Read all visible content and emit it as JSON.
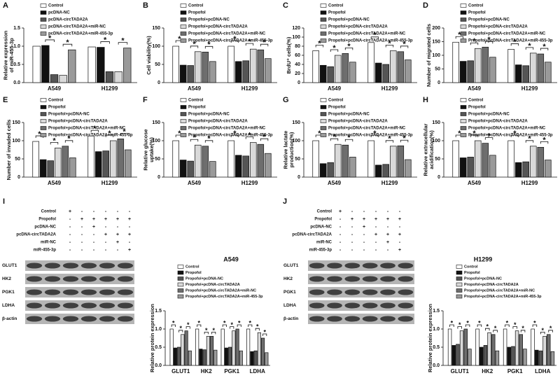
{
  "chart_data": [
    {
      "type": "bar",
      "panel_label": "A",
      "ylabel": [
        "Relative expression",
        "of miR-455-3p"
      ],
      "categories": [
        "A549",
        "H1299"
      ],
      "significance": "*",
      "ylim": [
        0,
        1.5
      ],
      "yticks": [
        {
          "value": 0,
          "label": "0.0"
        },
        {
          "value": 0.5,
          "label": "0.5"
        },
        {
          "value": 1,
          "label": "1.0"
        },
        {
          "value": 1.5,
          "label": "1.5"
        }
      ],
      "series": [
        {
          "name": "Control",
          "color": "#ffffff",
          "values": [
            1.0,
            0.98
          ]
        },
        {
          "name": "pcDNA-NC",
          "color": "#111111",
          "values": [
            1.02,
            0.97
          ]
        },
        {
          "name": "pcDNA-circTADA2A",
          "color": "#555555",
          "values": [
            0.22,
            0.3
          ]
        },
        {
          "name": "pcDNA-circTADA2A+miR-NC",
          "color": "#d9d9d9",
          "values": [
            0.2,
            0.3
          ]
        },
        {
          "name": "pcDNA-circTADA2A+miR-455-3p",
          "color": "#9a9a9a",
          "values": [
            0.9,
            0.95
          ]
        }
      ]
    },
    {
      "type": "bar",
      "panel_label": "B",
      "ylabel": [
        "Cell viability(%)"
      ],
      "categories": [
        "A549",
        "H1299"
      ],
      "significance": "*",
      "ylim": [
        0,
        150
      ],
      "yticks": [
        0,
        50,
        100,
        150
      ],
      "series": [
        {
          "name": "Control",
          "color": "#ffffff",
          "values": [
            100,
            100
          ]
        },
        {
          "name": "Propofol",
          "color": "#111111",
          "values": [
            48,
            58
          ]
        },
        {
          "name": "Propofol+pcDNA-NC",
          "color": "#555555",
          "values": [
            47,
            60
          ]
        },
        {
          "name": "Propofol+pcDNA-circTADA2A",
          "color": "#d9d9d9",
          "values": [
            85,
            92
          ]
        },
        {
          "name": "Propofol+pcDNA-circTADA2A+miR-NC",
          "color": "#6e6e6e",
          "values": [
            84,
            90
          ]
        },
        {
          "name": "Propofol+pcDNA-circTADA2A+miR-455-3p",
          "color": "#9a9a9a",
          "values": [
            58,
            66
          ]
        }
      ]
    },
    {
      "type": "bar",
      "panel_label": "C",
      "ylabel": [
        "BrdU⁺ cells(%)"
      ],
      "categories": [
        "A549",
        "H1299"
      ],
      "significance": "*",
      "ylim": [
        0,
        120
      ],
      "yticks": [
        0,
        20,
        40,
        60,
        80,
        100,
        120
      ],
      "series": [
        {
          "name": "Control",
          "color": "#ffffff",
          "values": [
            70,
            88
          ]
        },
        {
          "name": "Propofol",
          "color": "#111111",
          "values": [
            38,
            43
          ]
        },
        {
          "name": "Propofol+pcDNA-NC",
          "color": "#555555",
          "values": [
            35,
            40
          ]
        },
        {
          "name": "Propofol+pcDNA-circTADA2A",
          "color": "#d9d9d9",
          "values": [
            60,
            70
          ]
        },
        {
          "name": "Propofol+pcDNA-circTADA2A+miR-NC",
          "color": "#6e6e6e",
          "values": [
            64,
            68
          ]
        },
        {
          "name": "Propofol+pcDNA-circTADA2A+miR-455-3p",
          "color": "#9a9a9a",
          "values": [
            45,
            50
          ]
        }
      ]
    },
    {
      "type": "bar",
      "panel_label": "D",
      "ylabel": [
        "Number of migrated cells"
      ],
      "categories": [
        "A549",
        "H1299"
      ],
      "significance": "*",
      "ylim": [
        0,
        200
      ],
      "yticks": [
        0,
        50,
        100,
        150,
        200
      ],
      "series": [
        {
          "name": "Control",
          "color": "#ffffff",
          "values": [
            148,
            122
          ]
        },
        {
          "name": "Propofol",
          "color": "#111111",
          "values": [
            78,
            65
          ]
        },
        {
          "name": "Propofol+pcDNA-NC",
          "color": "#555555",
          "values": [
            80,
            62
          ]
        },
        {
          "name": "Propofol+pcDNA-circTADA2A",
          "color": "#d9d9d9",
          "values": [
            125,
            108
          ]
        },
        {
          "name": "Propofol+pcDNA-circTADA2A+miR-NC",
          "color": "#6e6e6e",
          "values": [
            130,
            105
          ]
        },
        {
          "name": "Propofol+pcDNA-circTADA2A+miR-455-3p",
          "color": "#9a9a9a",
          "values": [
            93,
            75
          ]
        }
      ]
    },
    {
      "type": "bar",
      "panel_label": "E",
      "ylabel": [
        "Number of invaded cells"
      ],
      "categories": [
        "A549",
        "H1299"
      ],
      "significance": "*",
      "ylim": [
        0,
        150
      ],
      "yticks": [
        0,
        50,
        100,
        150
      ],
      "series": [
        {
          "name": "Control",
          "color": "#ffffff",
          "values": [
            98,
            113
          ]
        },
        {
          "name": "Propofol",
          "color": "#111111",
          "values": [
            48,
            70
          ]
        },
        {
          "name": "Propofol+pcDNA-NC",
          "color": "#555555",
          "values": [
            45,
            72
          ]
        },
        {
          "name": "Propofol+pcDNA-circTADA2A",
          "color": "#d9d9d9",
          "values": [
            80,
            100
          ]
        },
        {
          "name": "Propofol+pcDNA-circTADA2A+miR-NC",
          "color": "#6e6e6e",
          "values": [
            85,
            105
          ]
        },
        {
          "name": "Propofol+pcDNA-circTADA2A+miR-455-3p",
          "color": "#9a9a9a",
          "values": [
            53,
            75
          ]
        }
      ]
    },
    {
      "type": "bar",
      "panel_label": "F",
      "ylabel": [
        "Relative glucose",
        "uptake(%)"
      ],
      "categories": [
        "A549",
        "H1299"
      ],
      "significance": "*",
      "ylim": [
        0,
        150
      ],
      "yticks": [
        0,
        50,
        100,
        150
      ],
      "series": [
        {
          "name": "Control",
          "color": "#ffffff",
          "values": [
            100,
            100
          ]
        },
        {
          "name": "Propofol",
          "color": "#111111",
          "values": [
            47,
            60
          ]
        },
        {
          "name": "Propofol+pcDNA-NC",
          "color": "#555555",
          "values": [
            44,
            58
          ]
        },
        {
          "name": "Propofol+pcDNA-circTADA2A",
          "color": "#d9d9d9",
          "values": [
            88,
            95
          ]
        },
        {
          "name": "Propofol+pcDNA-circTADA2A+miR-NC",
          "color": "#6e6e6e",
          "values": [
            85,
            90
          ]
        },
        {
          "name": "Propofol+pcDNA-circTADA2A+miR-455-3p",
          "color": "#9a9a9a",
          "values": [
            43,
            65
          ]
        }
      ]
    },
    {
      "type": "bar",
      "panel_label": "G",
      "ylabel": [
        "Relative lactate",
        "production(%)"
      ],
      "categories": [
        "A549",
        "H1299"
      ],
      "significance": "*",
      "ylim": [
        0,
        150
      ],
      "yticks": [
        0,
        50,
        100,
        150
      ],
      "series": [
        {
          "name": "Control",
          "color": "#ffffff",
          "values": [
            100,
            100
          ]
        },
        {
          "name": "Propofol",
          "color": "#111111",
          "values": [
            37,
            33
          ]
        },
        {
          "name": "Propofol+pcDNA-NC",
          "color": "#555555",
          "values": [
            40,
            35
          ]
        },
        {
          "name": "Propofol+pcDNA-circTADA2A",
          "color": "#d9d9d9",
          "values": [
            90,
            85
          ]
        },
        {
          "name": "Propofol+pcDNA-circTADA2A+miR-NC",
          "color": "#6e6e6e",
          "values": [
            88,
            86
          ]
        },
        {
          "name": "Propofol+pcDNA-circTADA2A+miR-455-3p",
          "color": "#9a9a9a",
          "values": [
            55,
            48
          ]
        }
      ]
    },
    {
      "type": "bar",
      "panel_label": "H",
      "ylabel": [
        "Relative extracellular",
        "acidification(%)"
      ],
      "categories": [
        "A549",
        "H1299"
      ],
      "significance": "*",
      "ylim": [
        0,
        150
      ],
      "yticks": [
        0,
        50,
        100,
        150
      ],
      "series": [
        {
          "name": "Control",
          "color": "#ffffff",
          "values": [
            100,
            100
          ]
        },
        {
          "name": "Propofol",
          "color": "#111111",
          "values": [
            53,
            40
          ]
        },
        {
          "name": "Propofol+pcDNA-NC",
          "color": "#555555",
          "values": [
            55,
            42
          ]
        },
        {
          "name": "Propofol+pcDNA-circTADA2A",
          "color": "#d9d9d9",
          "values": [
            100,
            85
          ]
        },
        {
          "name": "Propofol+pcDNA-circTADA2A+miR-NC",
          "color": "#6e6e6e",
          "values": [
            93,
            82
          ]
        },
        {
          "name": "Propofol+pcDNA-circTADA2A+miR-455-3p",
          "color": "#9a9a9a",
          "values": [
            60,
            47
          ]
        }
      ]
    },
    {
      "type": "bar",
      "panel_label": "I",
      "title": "A549",
      "ylabel": [
        "Relative protein expression"
      ],
      "categories": [
        "GLUT1",
        "HK2",
        "PGK1",
        "LDHA"
      ],
      "significance": "*",
      "ylim": [
        0,
        1.5
      ],
      "yticks": [
        {
          "value": 0,
          "label": "0.0"
        },
        {
          "value": 0.5,
          "label": "0.5"
        },
        {
          "value": 1,
          "label": "1.0"
        },
        {
          "value": 1.5,
          "label": "1.5"
        }
      ],
      "series": [
        {
          "name": "Control",
          "color": "#ffffff",
          "values": [
            1.0,
            1.0,
            1.0,
            1.0
          ]
        },
        {
          "name": "Propofol",
          "color": "#111111",
          "values": [
            0.48,
            0.45,
            0.48,
            0.38
          ]
        },
        {
          "name": "Propofol+pcDNA-NC",
          "color": "#555555",
          "values": [
            0.5,
            0.43,
            0.5,
            0.4
          ]
        },
        {
          "name": "Propofol+pcDNA-circTADA2A",
          "color": "#d9d9d9",
          "values": [
            0.85,
            0.8,
            0.95,
            0.9
          ]
        },
        {
          "name": "Propofol+pcDNA-circTADA2A+miR-NC",
          "color": "#6e6e6e",
          "values": [
            0.95,
            0.8,
            1.0,
            0.75
          ]
        },
        {
          "name": "Propofol+pcDNA-circTADA2A+miR-455-3p",
          "color": "#9a9a9a",
          "values": [
            0.4,
            0.42,
            0.4,
            0.35
          ]
        }
      ],
      "treatments": [
        {
          "name": "Control",
          "signs": [
            "+",
            "-",
            "-",
            "-",
            "-",
            "-"
          ]
        },
        {
          "name": "Propofol",
          "signs": [
            "-",
            "+",
            "+",
            "+",
            "+",
            "+"
          ]
        },
        {
          "name": "pcDNA-NC",
          "signs": [
            "-",
            "-",
            "+",
            "-",
            "-",
            "-"
          ]
        },
        {
          "name": "pcDNA-circTADA2A",
          "signs": [
            "-",
            "-",
            "-",
            "+",
            "+",
            "+"
          ]
        },
        {
          "name": "miR-NC",
          "signs": [
            "-",
            "-",
            "-",
            "-",
            "+",
            "-"
          ]
        },
        {
          "name": "miR-455-3p",
          "signs": [
            "-",
            "-",
            "-",
            "-",
            "-",
            "+"
          ]
        }
      ],
      "blot_rows": [
        "GLUT1",
        "HK2",
        "PGK1",
        "LDHA",
        "β-actin"
      ]
    },
    {
      "type": "bar",
      "panel_label": "J",
      "title": "H1299",
      "ylabel": [
        "Relative protein expression"
      ],
      "categories": [
        "GLUT1",
        "HK2",
        "PGK1",
        "LDHA"
      ],
      "significance": "*",
      "ylim": [
        0,
        1.5
      ],
      "yticks": [
        {
          "value": 0,
          "label": "0.0"
        },
        {
          "value": 0.5,
          "label": "0.5"
        },
        {
          "value": 1,
          "label": "1.0"
        },
        {
          "value": 1.5,
          "label": "1.5"
        }
      ],
      "series": [
        {
          "name": "Control",
          "color": "#ffffff",
          "values": [
            1.0,
            1.0,
            1.0,
            1.0
          ]
        },
        {
          "name": "Propofol",
          "color": "#111111",
          "values": [
            0.55,
            0.5,
            0.5,
            0.42
          ]
        },
        {
          "name": "Propofol+pcDNA-NC",
          "color": "#555555",
          "values": [
            0.58,
            0.55,
            0.52,
            0.4
          ]
        },
        {
          "name": "Propofol+pcDNA-circTADA2A",
          "color": "#d9d9d9",
          "values": [
            0.95,
            0.9,
            0.95,
            0.8
          ]
        },
        {
          "name": "Propofol+pcDNA-circTADA2A+miR-NC",
          "color": "#6e6e6e",
          "values": [
            1.0,
            0.85,
            0.85,
            0.85
          ]
        },
        {
          "name": "Propofol+pcDNA-circTADA2A+miR-455-3p",
          "color": "#9a9a9a",
          "values": [
            0.45,
            0.4,
            0.45,
            0.38
          ]
        }
      ],
      "treatments": [
        {
          "name": "Control",
          "signs": [
            "+",
            "-",
            "-",
            "-",
            "-",
            "-"
          ]
        },
        {
          "name": "Propofol",
          "signs": [
            "-",
            "+",
            "+",
            "+",
            "+",
            "+"
          ]
        },
        {
          "name": "pcDNA-NC",
          "signs": [
            "-",
            "-",
            "+",
            "-",
            "-",
            "-"
          ]
        },
        {
          "name": "pcDNA-circTADA2A",
          "signs": [
            "-",
            "-",
            "-",
            "+",
            "+",
            "+"
          ]
        },
        {
          "name": "miR-NC",
          "signs": [
            "-",
            "-",
            "-",
            "-",
            "+",
            "-"
          ]
        },
        {
          "name": "miR-455-3p",
          "signs": [
            "-",
            "-",
            "-",
            "-",
            "-",
            "+"
          ]
        }
      ],
      "blot_rows": [
        "GLUT1",
        "HK2",
        "PGK1",
        "LDHA",
        "β-actin"
      ]
    }
  ]
}
